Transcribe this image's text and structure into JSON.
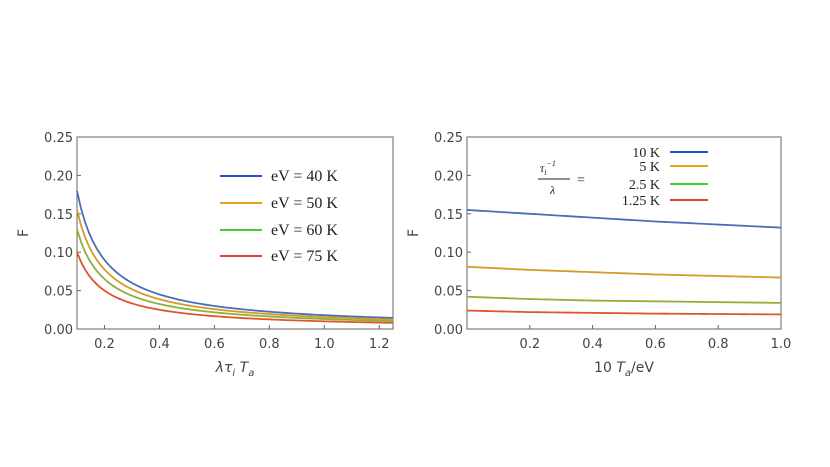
{
  "chart_data": [
    {
      "type": "line",
      "ylabel": "F",
      "xlabel": "λτ_i T_a",
      "xlabel_parts": {
        "a": "λτ",
        "b": "i",
        "c": "T",
        "d": "a"
      },
      "xlim": [
        0.1,
        1.25
      ],
      "ylim": [
        0,
        0.25
      ],
      "xticks": [
        "0.2",
        "0.4",
        "0.6",
        "0.8",
        "1.0",
        "1.2"
      ],
      "xtick_values": [
        0.2,
        0.4,
        0.6,
        0.8,
        1.0,
        1.2
      ],
      "yticks": [
        "0.00",
        "0.05",
        "0.10",
        "0.15",
        "0.20",
        "0.25"
      ],
      "ytick_values": [
        0,
        0.05,
        0.1,
        0.15,
        0.2,
        0.25
      ],
      "legend_position": "top-right",
      "series": [
        {
          "name": "eV = 40 K",
          "color": "#4a6fb5",
          "legend_color": "#2255cc",
          "x": [
            0.1,
            0.15,
            0.2,
            0.3,
            0.4,
            0.5,
            0.6,
            0.8,
            1.0,
            1.25
          ],
          "values": [
            0.18,
            0.12,
            0.09,
            0.06,
            0.045,
            0.036,
            0.03,
            0.0225,
            0.018,
            0.0144
          ]
        },
        {
          "name": "eV = 50 K",
          "color": "#d49a2a",
          "legend_color": "#e8a020",
          "x": [
            0.1,
            0.15,
            0.2,
            0.3,
            0.4,
            0.5,
            0.6,
            0.8,
            1.0,
            1.25
          ],
          "values": [
            0.155,
            0.103,
            0.0775,
            0.0517,
            0.0388,
            0.031,
            0.0258,
            0.0194,
            0.0155,
            0.0124
          ]
        },
        {
          "name": "eV = 60 K",
          "color": "#8fb03a",
          "legend_color": "#44cc33",
          "x": [
            0.1,
            0.15,
            0.2,
            0.3,
            0.4,
            0.5,
            0.6,
            0.8,
            1.0,
            1.25
          ],
          "values": [
            0.13,
            0.0867,
            0.065,
            0.0433,
            0.0325,
            0.026,
            0.0217,
            0.0163,
            0.013,
            0.0104
          ]
        },
        {
          "name": "eV = 75 K",
          "color": "#e0552a",
          "legend_color": "#e0442a",
          "x": [
            0.1,
            0.15,
            0.2,
            0.3,
            0.4,
            0.5,
            0.6,
            0.8,
            1.0,
            1.25
          ],
          "values": [
            0.1,
            0.0667,
            0.05,
            0.0333,
            0.025,
            0.02,
            0.0167,
            0.0125,
            0.01,
            0.008
          ]
        }
      ]
    },
    {
      "type": "line",
      "ylabel": "F",
      "xlabel": "10 T_a/eV",
      "xlabel_parts": {
        "a": "10 ",
        "b": "T",
        "c": "a",
        "d": "/eV"
      },
      "xlim": [
        0,
        1.0
      ],
      "ylim": [
        0,
        0.25
      ],
      "xticks": [
        "0.2",
        "0.4",
        "0.6",
        "0.8",
        "1.0"
      ],
      "xtick_values": [
        0.2,
        0.4,
        0.6,
        0.8,
        1.0
      ],
      "yticks": [
        "0.00",
        "0.05",
        "0.10",
        "0.15",
        "0.20",
        "0.25"
      ],
      "ytick_values": [
        0,
        0.05,
        0.1,
        0.15,
        0.2,
        0.25
      ],
      "legend_position": "top-right",
      "legend_title": {
        "numer": "τ",
        "sub": "i",
        "sup": "−1",
        "denom": "λ",
        "eq": "="
      },
      "series": [
        {
          "name": "10 K",
          "color": "#4a6fb5",
          "legend_color": "#2255cc",
          "x": [
            0,
            0.2,
            0.4,
            0.6,
            0.8,
            1.0
          ],
          "values": [
            0.155,
            0.15,
            0.145,
            0.14,
            0.136,
            0.132
          ]
        },
        {
          "name": "5 K",
          "color": "#d49a2a",
          "legend_color": "#e8a020",
          "x": [
            0,
            0.2,
            0.4,
            0.6,
            0.8,
            1.0
          ],
          "values": [
            0.081,
            0.077,
            0.074,
            0.071,
            0.069,
            0.067
          ]
        },
        {
          "name": "2.5 K",
          "color": "#8fb03a",
          "legend_color": "#44cc33",
          "x": [
            0,
            0.2,
            0.4,
            0.6,
            0.8,
            1.0
          ],
          "values": [
            0.042,
            0.039,
            0.037,
            0.036,
            0.035,
            0.034
          ]
        },
        {
          "name": "1.25 K",
          "color": "#e0552a",
          "legend_color": "#e0442a",
          "x": [
            0,
            0.2,
            0.4,
            0.6,
            0.8,
            1.0
          ],
          "values": [
            0.024,
            0.022,
            0.021,
            0.02,
            0.0195,
            0.019
          ]
        }
      ]
    }
  ]
}
